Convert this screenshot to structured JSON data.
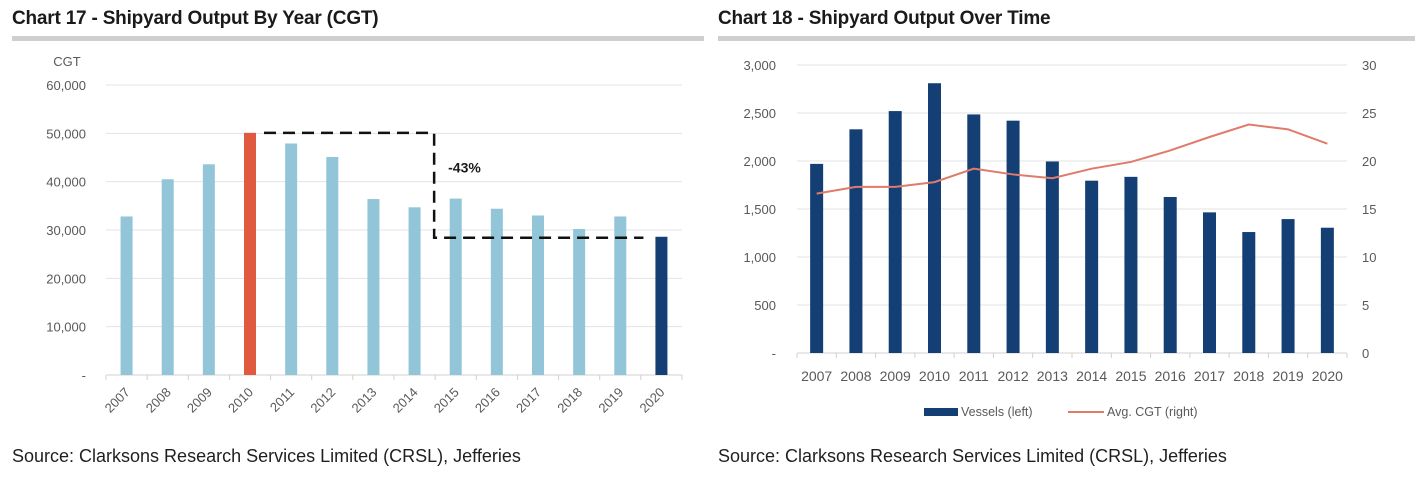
{
  "chart_data": [
    {
      "id": "chart17",
      "type": "bar",
      "title": "Chart 17 - Shipyard Output By Year (CGT)",
      "source": "Source: Clarksons Research Services Limited (CRSL), Jefferies",
      "ylabel": "CGT",
      "xlabel": "",
      "categories": [
        "2007",
        "2008",
        "2009",
        "2010",
        "2011",
        "2012",
        "2013",
        "2014",
        "2015",
        "2016",
        "2017",
        "2018",
        "2019",
        "2020"
      ],
      "values": [
        32800,
        40500,
        43600,
        50100,
        47900,
        45100,
        36400,
        34700,
        36500,
        34400,
        33000,
        30200,
        32800,
        28600
      ],
      "bar_colors": [
        "#92c5d8",
        "#92c5d8",
        "#92c5d8",
        "#e05a40",
        "#92c5d8",
        "#92c5d8",
        "#92c5d8",
        "#92c5d8",
        "#92c5d8",
        "#92c5d8",
        "#92c5d8",
        "#92c5d8",
        "#92c5d8",
        "#133f74"
      ],
      "ylim": [
        0,
        60000
      ],
      "yticks": [
        0,
        10000,
        20000,
        30000,
        40000,
        50000,
        60000
      ],
      "ytick_labels": [
        "-",
        "10,000",
        "20,000",
        "30,000",
        "40,000",
        "50,000",
        "60,000"
      ],
      "grid": true,
      "x_tick_rotation": "diagonal",
      "annotation": {
        "text": "-43%",
        "from_category": "2010",
        "from_value": 50100,
        "drop_category_boundary": "2014-2015",
        "to_category": "2020",
        "to_value": 28600,
        "style": "dashed-step"
      }
    },
    {
      "id": "chart18",
      "type": "bar+line",
      "title": "Chart 18 - Shipyard Output Over Time",
      "source": "Source: Clarksons Research Services Limited (CRSL), Jefferies",
      "categories": [
        "2007",
        "2008",
        "2009",
        "2010",
        "2011",
        "2012",
        "2013",
        "2014",
        "2015",
        "2016",
        "2017",
        "2018",
        "2019",
        "2020"
      ],
      "series": [
        {
          "name": "Vessels (left)",
          "type": "bar",
          "axis": "left",
          "color": "#133f74",
          "values": [
            1970,
            2330,
            2520,
            2810,
            2485,
            2420,
            1995,
            1795,
            1835,
            1625,
            1465,
            1260,
            1395,
            1305
          ]
        },
        {
          "name": "Avg. CGT (right)",
          "type": "line",
          "axis": "right",
          "color": "#e07a6a",
          "values": [
            16.6,
            17.3,
            17.3,
            17.8,
            19.2,
            18.6,
            18.2,
            19.2,
            19.9,
            21.1,
            22.5,
            23.8,
            23.3,
            21.8
          ]
        }
      ],
      "ylim_left": [
        0,
        3000
      ],
      "yticks_left": [
        0,
        500,
        1000,
        1500,
        2000,
        2500,
        3000
      ],
      "ytick_labels_left": [
        "-",
        "500",
        "1,000",
        "1,500",
        "2,000",
        "2,500",
        "3,000"
      ],
      "ylim_right": [
        0,
        30
      ],
      "yticks_right": [
        0,
        5,
        10,
        15,
        20,
        25,
        30
      ],
      "ytick_labels_right": [
        "0",
        "5",
        "10",
        "15",
        "20",
        "25",
        "30"
      ],
      "grid": true,
      "legend": "bottom-center"
    }
  ]
}
